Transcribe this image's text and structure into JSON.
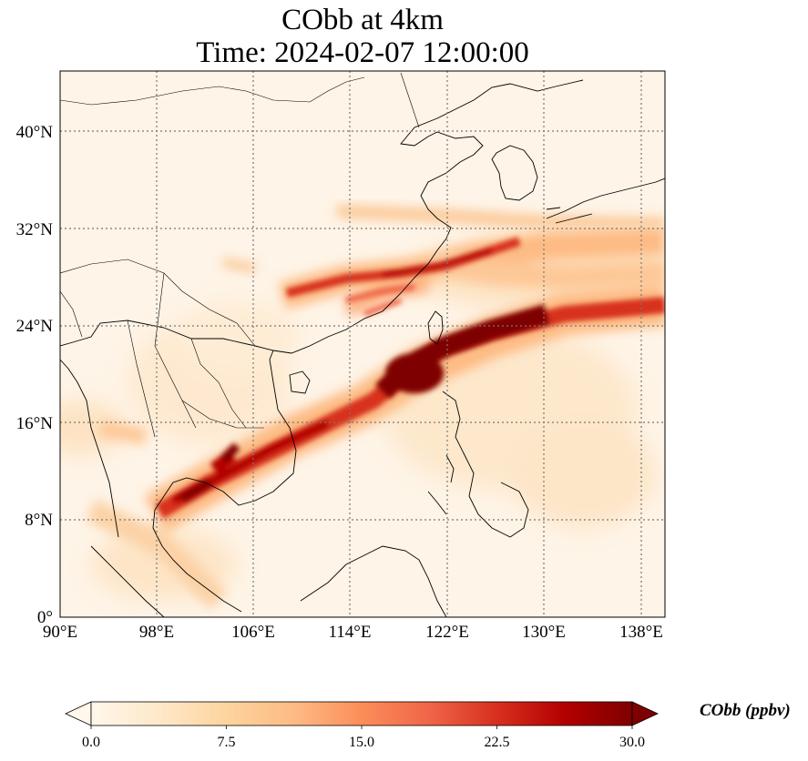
{
  "title_line1": "CObb at 4km",
  "title_line2": "Time: 2024-02-07 12:00:00",
  "map": {
    "lon_ticks": [
      "90°E",
      "98°E",
      "106°E",
      "114°E",
      "122°E",
      "130°E",
      "138°E"
    ],
    "lat_ticks": [
      "0°",
      "8°N",
      "16°N",
      "24°N",
      "32°N",
      "40°N"
    ],
    "lon_range": [
      90,
      140
    ],
    "lat_range": [
      0,
      45
    ],
    "gridlines": true,
    "field": "CObb",
    "plumes": [
      {
        "name": "main_band",
        "from": [
          100,
          10
        ],
        "to": [
          140,
          25.5
        ],
        "peak_ppbv": 30
      },
      {
        "name": "east_china_band",
        "from": [
          107,
          27
        ],
        "to": [
          140,
          30
        ],
        "peak_ppbv": 28
      },
      {
        "name": "northern_band",
        "from": [
          113,
          33
        ],
        "to": [
          140,
          32
        ],
        "peak_ppbv": 12
      }
    ]
  },
  "colorbar": {
    "label": "CObb (ppbv)",
    "ticks": [
      "0.0",
      "7.5",
      "15.0",
      "22.5",
      "30.0"
    ],
    "min": 0,
    "max": 30,
    "extend": "both",
    "colors": [
      "#fff7ec",
      "#fee8c8",
      "#fdd49e",
      "#fdbb84",
      "#fc8d59",
      "#ef6548",
      "#d7301f",
      "#b30000",
      "#7f0000"
    ]
  }
}
